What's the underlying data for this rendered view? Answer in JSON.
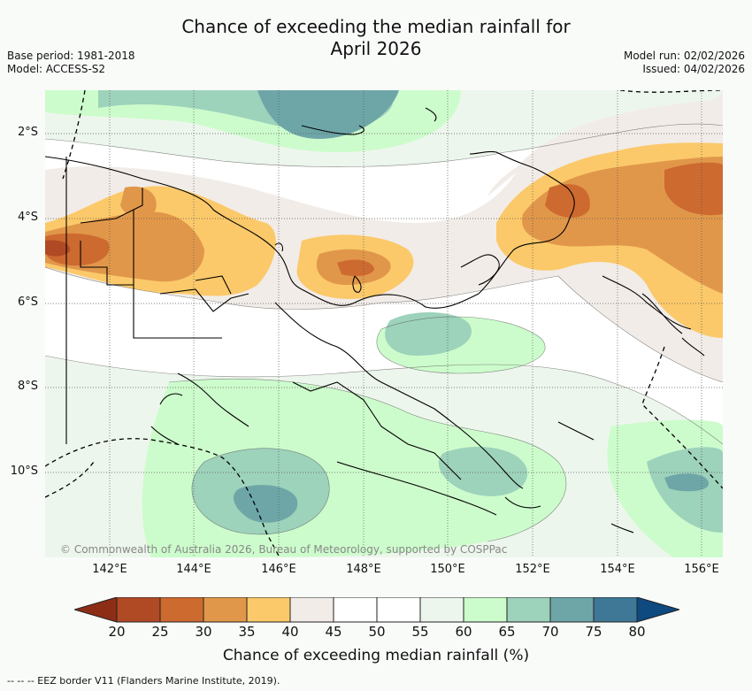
{
  "title_line1": "Chance of exceeding the median rainfall for",
  "title_line2": "April 2026",
  "base_period": "Base period: 1981-2018",
  "model": "Model: ACCESS-S2",
  "model_run": "Model run: 02/02/2026",
  "issued": "Issued: 04/02/2026",
  "copyright": "© Commonwealth of Australia 2026, Bureau of Meteorology, supported by COSPPac",
  "lat_labels": [
    "2°S",
    "4°S",
    "6°S",
    "8°S",
    "10°S"
  ],
  "lon_labels": [
    "142°E",
    "144°E",
    "146°E",
    "148°E",
    "150°E",
    "152°E",
    "154°E",
    "156°E"
  ],
  "colorbar": {
    "ticks": [
      "20",
      "25",
      "30",
      "35",
      "40",
      "45",
      "50",
      "55",
      "60",
      "65",
      "70",
      "75",
      "80"
    ],
    "colors": [
      "#8e2d16",
      "#b04a24",
      "#cd6a30",
      "#e1974a",
      "#fbc96a",
      "#f1ece7",
      "#ffffff",
      "#ffffff",
      "#edf6ec",
      "#cdfccc",
      "#9dd2bb",
      "#6ea6a8",
      "#3e7896",
      "#0e4980"
    ],
    "label": "Chance of exceeding median rainfall (%)"
  },
  "legend_text": "-- -- -- EEZ border V11 (Flanders Marine Institute, 2019)."
}
